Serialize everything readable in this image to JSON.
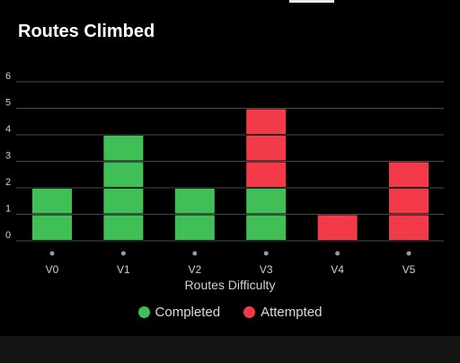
{
  "title": "Routes Climbed",
  "colors": {
    "completed": "#3fbf55",
    "attempted": "#f23a48",
    "grid": "#4a4a4a",
    "text": "#d0d0d0",
    "background": "#000000"
  },
  "chart_data": {
    "type": "bar",
    "stacked": true,
    "title": "Routes Climbed",
    "xlabel": "Routes Difficulty",
    "ylabel": "",
    "categories": [
      "V0",
      "V1",
      "V2",
      "V3",
      "V4",
      "V5"
    ],
    "series": [
      {
        "name": "Completed",
        "values": [
          2,
          4,
          2,
          2,
          0,
          0
        ]
      },
      {
        "name": "Attempted",
        "values": [
          0,
          0,
          0,
          3,
          1,
          3
        ]
      }
    ],
    "ylim": [
      0,
      6
    ],
    "yticks": [
      0,
      1,
      2,
      3,
      4,
      5,
      6
    ],
    "grid": true,
    "legend": "bottom-center"
  }
}
